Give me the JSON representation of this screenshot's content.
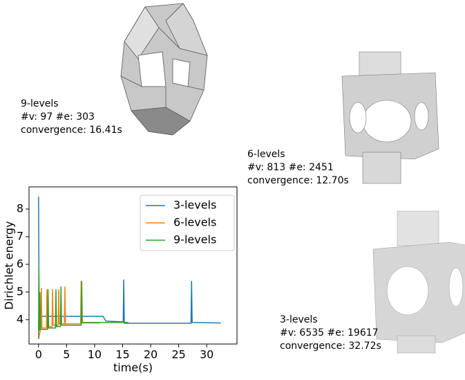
{
  "chart_data": {
    "type": "line",
    "xlabel": "time(s)",
    "ylabel": "Dirichlet energy",
    "xlim": [
      -1.7,
      35.4
    ],
    "ylim": [
      3.12,
      8.8
    ],
    "xticks": [
      0,
      5,
      10,
      15,
      20,
      25,
      30
    ],
    "yticks": [
      4,
      5,
      6,
      7,
      8
    ],
    "legend": "upper right",
    "series": [
      {
        "name": "3-levels",
        "color": "#1f77b4",
        "x": [
          0,
          0.1,
          0.3,
          11.5,
          12,
          15.1,
          15.2,
          15.3,
          27.2,
          27.3,
          27.4,
          32.5
        ],
        "values": [
          8.45,
          4.3,
          4.12,
          4.12,
          3.95,
          3.92,
          5.45,
          3.87,
          3.87,
          5.4,
          3.9,
          3.88
        ]
      },
      {
        "name": "6-levels",
        "color": "#ff7f0e",
        "x": [
          0,
          0.4,
          0.5,
          0.6,
          1.4,
          1.5,
          1.6,
          2.4,
          2.5,
          2.6,
          3.5,
          3.6,
          3.7,
          4.6,
          4.7,
          4.8,
          7.5,
          7.6,
          7.7,
          11
        ],
        "values": [
          3.3,
          3.7,
          5.15,
          3.7,
          3.7,
          5.1,
          3.75,
          3.75,
          5.1,
          3.8,
          3.8,
          5.1,
          3.85,
          3.85,
          5.2,
          3.85,
          3.85,
          5.4,
          3.88,
          3.88
        ]
      },
      {
        "name": "9-levels",
        "color": "#2ca02c",
        "x": [
          0,
          0.05,
          0.15,
          0.25,
          0.35,
          1.6,
          1.7,
          1.8,
          3.0,
          3.1,
          3.2,
          3.9,
          4.0,
          4.1,
          7.6,
          7.7,
          7.8,
          16
        ],
        "values": [
          3.3,
          6.0,
          3.6,
          5.0,
          3.65,
          3.65,
          5.1,
          3.7,
          3.7,
          5.1,
          3.75,
          3.75,
          5.2,
          3.8,
          3.8,
          5.4,
          3.9,
          3.9
        ]
      }
    ]
  },
  "figure": {
    "meshes": [
      {
        "lines": [
          "9-levels",
          "#v: 97 #e: 303",
          "convergence: 16.41s"
        ]
      },
      {
        "lines": [
          "6-levels",
          "#v: 813 #e: 2451",
          "convergence: 12.70s"
        ]
      },
      {
        "lines": [
          "3-levels",
          "#v: 6535 #e: 19617",
          "convergence: 32.72s"
        ]
      }
    ]
  }
}
